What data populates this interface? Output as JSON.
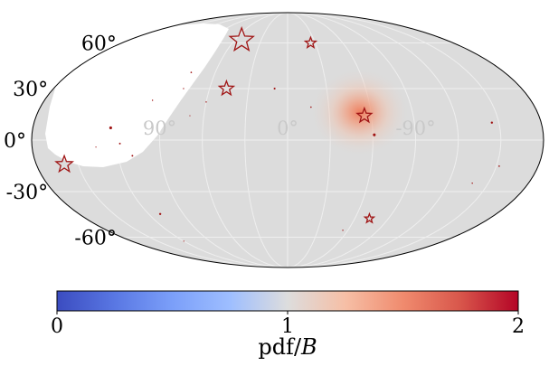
{
  "chart_data": {
    "type": "sky-map",
    "projection": "Mollweide",
    "lat_tick_labels": [
      "60°",
      "30°",
      "0°",
      "-30°",
      "-60°"
    ],
    "lat_ticks": [
      60,
      30,
      0,
      -30,
      -60
    ],
    "lon_tick_labels": [
      "90°",
      "0°",
      "-90°"
    ],
    "lon_ticks": [
      90,
      0,
      -90
    ],
    "hotspot": {
      "lon": -52,
      "lat": 16,
      "peak_value": 1.55,
      "sigma_deg": 13
    },
    "excluded_region_note": "blank (white) masked region at upper left",
    "markers": [
      {
        "kind": "star",
        "lon": 52,
        "lat": 62,
        "scale": 2.2
      },
      {
        "kind": "star",
        "lon": -25,
        "lat": 60,
        "scale": 1.0
      },
      {
        "kind": "star",
        "lon": 47,
        "lat": 30,
        "scale": 1.35
      },
      {
        "kind": "star",
        "lon": -55,
        "lat": 14,
        "scale": 1.35
      },
      {
        "kind": "star",
        "lon": 160,
        "lat": -14,
        "scale": 1.55
      },
      {
        "kind": "star",
        "lon": -73,
        "lat": -47,
        "scale": 0.85
      },
      {
        "kind": "dot",
        "lon": -61,
        "lat": 3,
        "scale": 1.3
      },
      {
        "kind": "dot",
        "lon": 125,
        "lat": 7,
        "scale": 1.3
      },
      {
        "kind": "dot",
        "lon": 10,
        "lat": 30,
        "scale": 0.9
      },
      {
        "kind": "dot",
        "lon": -17,
        "lat": 19,
        "scale": 0.7
      },
      {
        "kind": "dot",
        "lon": 80,
        "lat": 40,
        "scale": 0.7
      },
      {
        "kind": "dot",
        "lon": 100,
        "lat": 23,
        "scale": 0.6
      },
      {
        "kind": "dot",
        "lon": 118,
        "lat": -2,
        "scale": 0.8
      },
      {
        "kind": "dot",
        "lon": 110,
        "lat": -9,
        "scale": 0.8
      },
      {
        "kind": "dot",
        "lon": 135,
        "lat": -4,
        "scale": 0.5
      },
      {
        "kind": "dot",
        "lon": 80,
        "lat": 30,
        "scale": 0.6
      },
      {
        "kind": "dot",
        "lon": 60,
        "lat": 22,
        "scale": 0.6
      },
      {
        "kind": "dot",
        "lon": 70,
        "lat": 14,
        "scale": 0.5
      },
      {
        "kind": "dot",
        "lon": -145,
        "lat": 10,
        "scale": 1.0
      },
      {
        "kind": "dot",
        "lon": -152,
        "lat": -15,
        "scale": 0.7
      },
      {
        "kind": "dot",
        "lon": -138,
        "lat": -25,
        "scale": 0.6
      },
      {
        "kind": "dot",
        "lon": 110,
        "lat": -44,
        "scale": 1.0
      },
      {
        "kind": "dot",
        "lon": -55,
        "lat": -55,
        "scale": 0.6
      },
      {
        "kind": "dot",
        "lon": 120,
        "lat": -63,
        "scale": 0.5
      }
    ],
    "colorbar": {
      "colormap": "coolwarm",
      "min": 0,
      "max": 2,
      "tick_values": [
        0,
        1,
        2
      ],
      "tick_labels": [
        "0",
        "1",
        "2"
      ],
      "label_prefix": "pdf/",
      "label_var": "B"
    },
    "colors": {
      "background_map": "#dcdcdc",
      "grid": "#efefef",
      "marker": "#a01515",
      "hotspot": "#f08a66"
    }
  }
}
